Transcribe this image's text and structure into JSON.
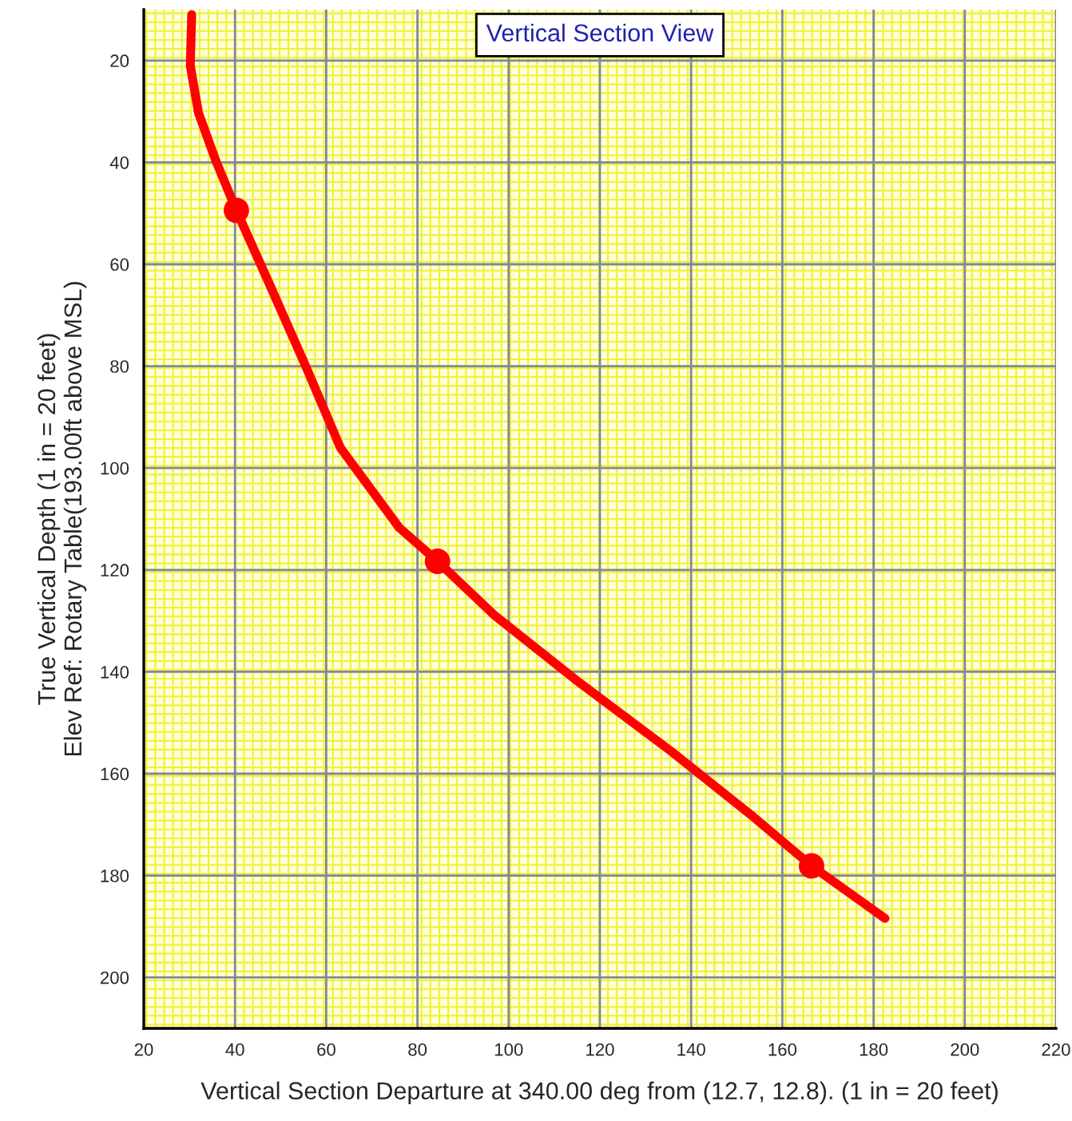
{
  "chart_data": {
    "type": "line",
    "title": "Vertical Section View",
    "xlabel": "Vertical Section Departure at 340.00 deg from (12.7, 12.8). (1 in = 20 feet)",
    "ylabel": "True Vertical Depth (1 in = 20 feet)\nElev Ref: Rotary Table(193.00ft above MSL)",
    "series": [
      {
        "type": "line",
        "color": "#ff0000",
        "x": [
          30.5,
          30.2,
          32.0,
          35.8,
          40.3,
          48,
          55.7,
          63.1,
          76.0,
          84.4,
          97,
          114.6,
          135.6,
          153,
          166.4,
          182.5
        ],
        "values": [
          11,
          21,
          30.3,
          39.7,
          49.4,
          64.8,
          80.4,
          96,
          111.7,
          118.3,
          129,
          141.5,
          155.6,
          168,
          178.1,
          188.4
        ]
      },
      {
        "type": "scatter",
        "color": "#ff0000",
        "marker": "circle",
        "x": [
          40.3,
          84.4,
          166.4
        ],
        "values": [
          49.4,
          118.3,
          178.1
        ]
      }
    ],
    "xlim": [
      20,
      220
    ],
    "xticks": [
      20,
      40,
      60,
      80,
      100,
      120,
      140,
      160,
      180,
      200,
      220
    ],
    "ylim": [
      210,
      10
    ],
    "yticks": [
      20,
      40,
      60,
      80,
      100,
      120,
      140,
      160,
      180,
      200
    ],
    "grid": true,
    "legend": false
  }
}
